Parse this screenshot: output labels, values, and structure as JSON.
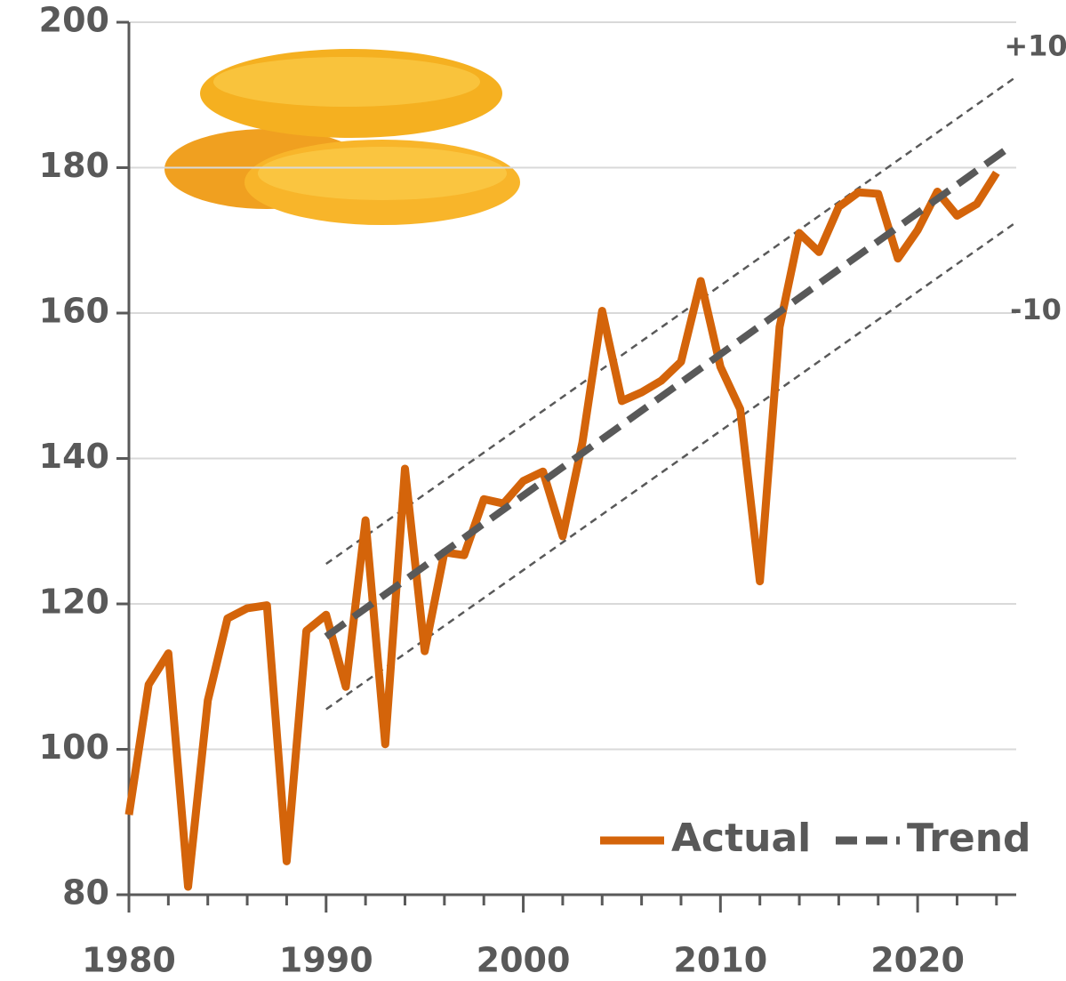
{
  "chart_data": {
    "type": "line",
    "x": [
      1980,
      1981,
      1982,
      1983,
      1984,
      1985,
      1986,
      1987,
      1988,
      1989,
      1990,
      1991,
      1992,
      1993,
      1994,
      1995,
      1996,
      1997,
      1998,
      1999,
      2000,
      2001,
      2002,
      2003,
      2004,
      2005,
      2006,
      2007,
      2008,
      2009,
      2010,
      2011,
      2012,
      2013,
      2014,
      2015,
      2016,
      2017,
      2018,
      2019,
      2020,
      2021,
      2022,
      2023,
      2024
    ],
    "series": [
      {
        "name": "Actual",
        "color": "#d4640a",
        "values": [
          91.0,
          108.9,
          113.2,
          81.1,
          106.7,
          118.0,
          119.4,
          119.8,
          84.6,
          116.3,
          118.5,
          108.6,
          131.5,
          100.7,
          138.6,
          113.5,
          127.1,
          126.7,
          134.4,
          133.8,
          136.9,
          138.2,
          129.3,
          142.2,
          160.3,
          147.9,
          149.1,
          150.7,
          153.3,
          164.4,
          152.6,
          146.8,
          123.1,
          158.1,
          171.0,
          168.4,
          174.6,
          176.6,
          176.4,
          167.5,
          171.4,
          176.7,
          173.4,
          175.0,
          179.3
        ]
      },
      {
        "name": "Trend",
        "color": "#595959",
        "dashed": true,
        "x": [
          1990,
          2024.5
        ],
        "values": [
          115.5,
          182.5
        ]
      }
    ],
    "bands": [
      {
        "label": "+10",
        "x": [
          1990,
          2025
        ],
        "values": [
          125.5,
          192.5
        ]
      },
      {
        "label": "-10",
        "x": [
          1990,
          2025
        ],
        "values": [
          105.5,
          172.5
        ]
      }
    ],
    "xlim": [
      1980,
      2025
    ],
    "xticks": [
      1980,
      1990,
      2000,
      2010,
      2020
    ],
    "xminorticks": [
      1982,
      1984,
      1986,
      1988,
      1992,
      1994,
      1996,
      1998,
      2002,
      2004,
      2006,
      2008,
      2012,
      2014,
      2016,
      2018,
      2022,
      2024
    ],
    "ylim": [
      80,
      200
    ],
    "yticks": [
      80,
      100,
      120,
      140,
      160,
      180,
      200
    ],
    "grid": true
  }
}
